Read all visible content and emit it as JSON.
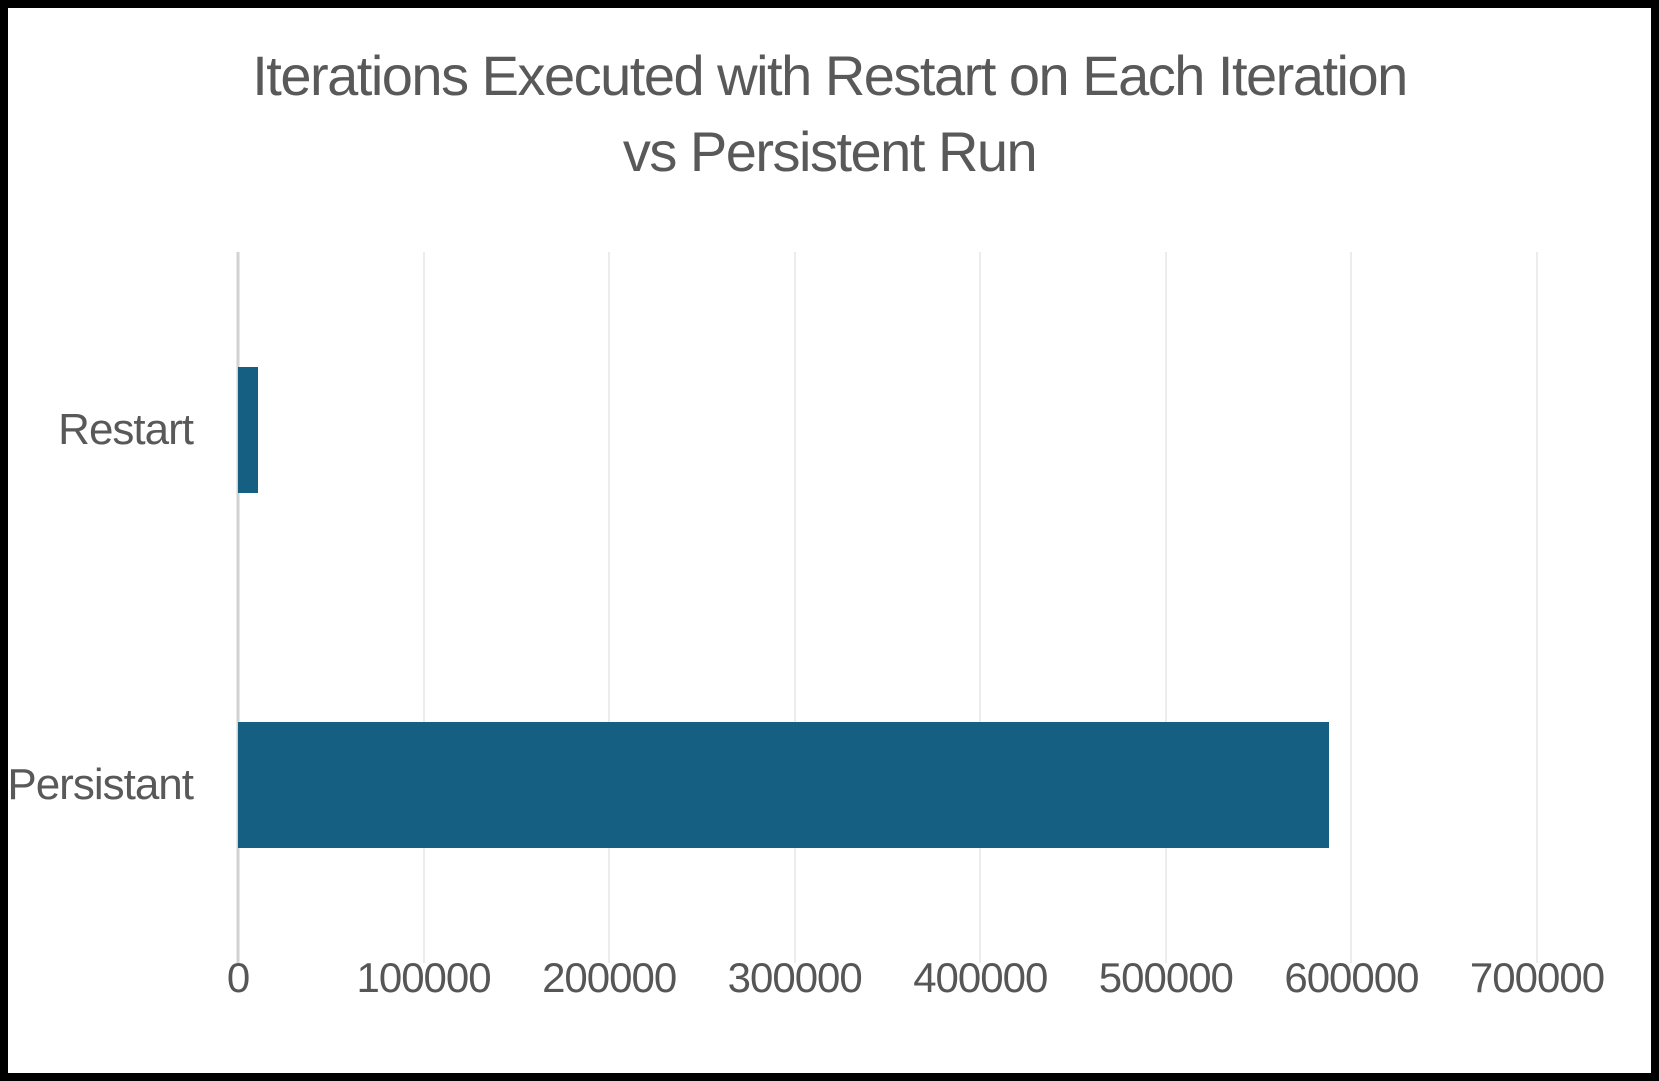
{
  "window": {
    "background": "#ffffff",
    "frame_color": "#000000"
  },
  "chart_data": {
    "type": "bar",
    "orientation": "horizontal",
    "title": "Iterations Executed with Restart on Each Iteration vs Persistent Run",
    "title_lines": [
      "Iterations Executed with Restart on Each Iteration",
      "vs Persistent Run"
    ],
    "categories": [
      "Restart",
      "Persistant"
    ],
    "values": [
      11000,
      588000
    ],
    "xlabel": "",
    "ylabel": "",
    "xlim": [
      0,
      700000
    ],
    "x_tick_values": [
      0,
      100000,
      200000,
      300000,
      400000,
      500000,
      600000,
      700000
    ],
    "x_ticks": [
      "0",
      "100000",
      "200000",
      "300000",
      "400000",
      "500000",
      "600000",
      "700000"
    ],
    "grid": "vertical-only",
    "legend": "none",
    "colors": {
      "bar": "#156082",
      "title": "#595959",
      "category_label": "#595959",
      "tick_label": "#565656",
      "gridline": "#ececec",
      "axis_line": "#d2d2d2"
    }
  }
}
